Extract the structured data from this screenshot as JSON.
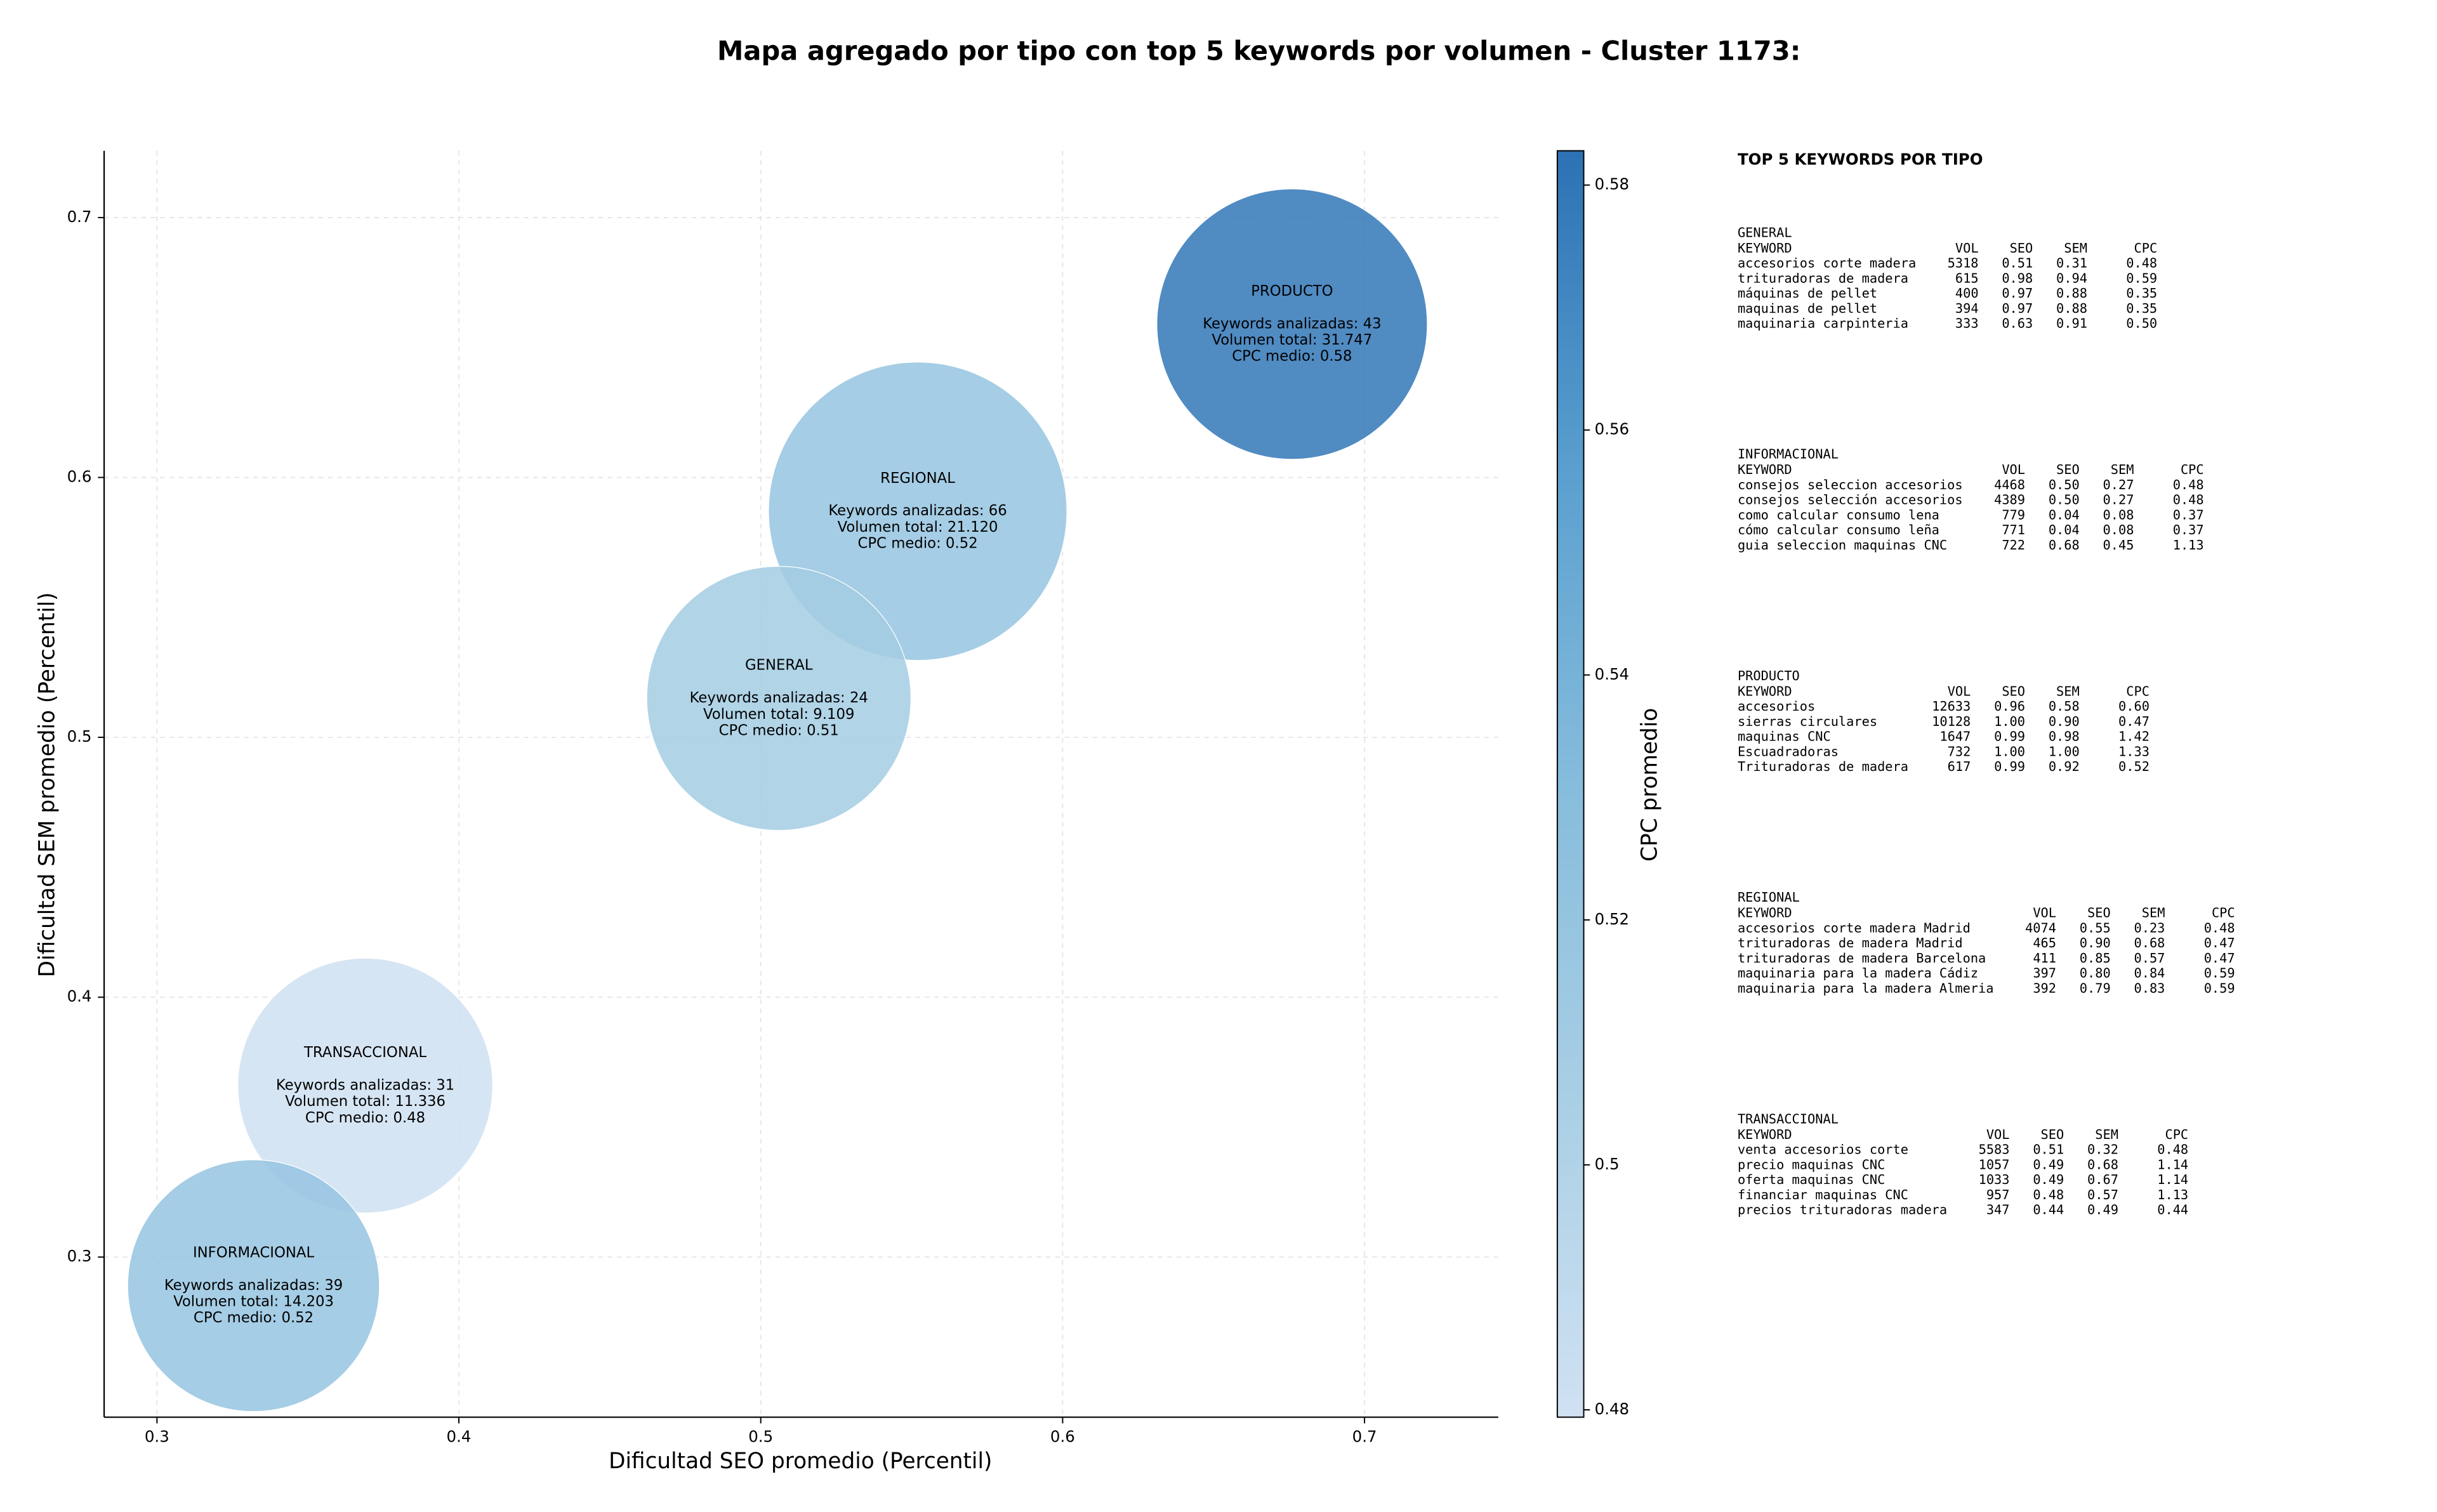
{
  "chart_data": {
    "type": "bubble",
    "title": "Mapa agregado por tipo con top 5 keywords por volumen - Cluster 1173:",
    "x_label": "Dificultad SEO promedio (Percentil)",
    "y_label": "Dificultad SEM promedio (Percentil)",
    "colorbar_label": "CPC promedio",
    "xlim": [
      0.2825,
      0.7443
    ],
    "ylim": [
      0.2384,
      0.7257
    ],
    "xticks": [
      0.3,
      0.4,
      0.5,
      0.6,
      0.7
    ],
    "yticks": [
      0.3,
      0.4,
      0.5,
      0.6,
      0.7
    ],
    "clim": [
      0.4794,
      0.5828
    ],
    "cticks": [
      0.48,
      0.5,
      0.52,
      0.54,
      0.56,
      0.58
    ],
    "colormap": [
      "#d0e1f2",
      "#a9cfe5",
      "#86bcdc",
      "#5a9fcf",
      "#2c72b4"
    ],
    "grid": true,
    "points": {
      "names": [
        "PRODUCTO",
        "REGIONAL",
        "GENERAL",
        "TRANSACCIONAL",
        "INFORMACIONAL"
      ],
      "x": [
        0.676,
        0.552,
        0.506,
        0.369,
        0.332
      ],
      "y": [
        0.659,
        0.587,
        0.515,
        0.366,
        0.289
      ],
      "sizes": [
        7569,
        9216,
        7225,
        6724,
        6561
      ],
      "cpc": [
        0.58,
        0.52,
        0.51,
        0.48,
        0.52
      ],
      "keyword_labels": [
        "Keywords analizadas: 43",
        "Keywords analizadas: 66",
        "Keywords analizadas: 24",
        "Keywords analizadas: 31",
        "Keywords analizadas: 39"
      ],
      "volume_labels": [
        "Volumen total: 31.747",
        "Volumen total: 21.120",
        "Volumen total: 9.109",
        "Volumen total: 11.336",
        "Volumen total: 14.203"
      ],
      "cpc_labels": [
        "CPC medio: 0.58",
        "CPC medio: 0.52",
        "CPC medio: 0.51",
        "CPC medio: 0.48",
        "CPC medio: 0.52"
      ]
    }
  },
  "side_panel": {
    "title": "TOP 5 KEYWORDS POR TIPO",
    "columns": [
      "KEYWORD",
      "VOL",
      "SEO",
      "SEM",
      "CPC"
    ],
    "sections": [
      {
        "name": "GENERAL",
        "rows": [
          [
            "accesorios corte madera",
            "5318",
            "0.51",
            "0.31",
            "0.48"
          ],
          [
            "trituradoras de madera",
            "615",
            "0.98",
            "0.94",
            "0.59"
          ],
          [
            "máquinas de pellet",
            "400",
            "0.97",
            "0.88",
            "0.35"
          ],
          [
            "maquinas de pellet",
            "394",
            "0.97",
            "0.88",
            "0.35"
          ],
          [
            "maquinaria carpinteria",
            "333",
            "0.63",
            "0.91",
            "0.50"
          ]
        ]
      },
      {
        "name": "INFORMACIONAL",
        "rows": [
          [
            "consejos seleccion accesorios",
            "4468",
            "0.50",
            "0.27",
            "0.48"
          ],
          [
            "consejos selección accesorios",
            "4389",
            "0.50",
            "0.27",
            "0.48"
          ],
          [
            "como calcular consumo lena",
            "779",
            "0.04",
            "0.08",
            "0.37"
          ],
          [
            "cómo calcular consumo leña",
            "771",
            "0.04",
            "0.08",
            "0.37"
          ],
          [
            "guia seleccion maquinas CNC",
            "722",
            "0.68",
            "0.45",
            "1.13"
          ]
        ]
      },
      {
        "name": "PRODUCTO",
        "rows": [
          [
            "accesorios",
            "12633",
            "0.96",
            "0.58",
            "0.60"
          ],
          [
            "sierras circulares",
            "10128",
            "1.00",
            "0.90",
            "0.47"
          ],
          [
            "maquinas CNC",
            "1647",
            "0.99",
            "0.98",
            "1.42"
          ],
          [
            "Escuadradoras",
            "732",
            "1.00",
            "1.00",
            "1.33"
          ],
          [
            "Trituradoras de madera",
            "617",
            "0.99",
            "0.92",
            "0.52"
          ]
        ]
      },
      {
        "name": "REGIONAL",
        "rows": [
          [
            "accesorios corte madera Madrid",
            "4074",
            "0.55",
            "0.23",
            "0.48"
          ],
          [
            "trituradoras de madera Madrid",
            "465",
            "0.90",
            "0.68",
            "0.47"
          ],
          [
            "trituradoras de madera Barcelona",
            "411",
            "0.85",
            "0.57",
            "0.47"
          ],
          [
            "maquinaria para la madera Cádiz",
            "397",
            "0.80",
            "0.84",
            "0.59"
          ],
          [
            "maquinaria para la madera Almeria",
            "392",
            "0.79",
            "0.83",
            "0.59"
          ]
        ]
      },
      {
        "name": "TRANSACCIONAL",
        "rows": [
          [
            "venta accesorios corte",
            "5583",
            "0.51",
            "0.32",
            "0.48"
          ],
          [
            "precio maquinas CNC",
            "1057",
            "0.49",
            "0.68",
            "1.14"
          ],
          [
            "oferta maquinas CNC",
            "1033",
            "0.49",
            "0.67",
            "1.14"
          ],
          [
            "financiar maquinas CNC",
            "957",
            "0.48",
            "0.57",
            "1.13"
          ],
          [
            "precios trituradoras madera",
            "347",
            "0.44",
            "0.49",
            "0.44"
          ]
        ]
      }
    ]
  }
}
